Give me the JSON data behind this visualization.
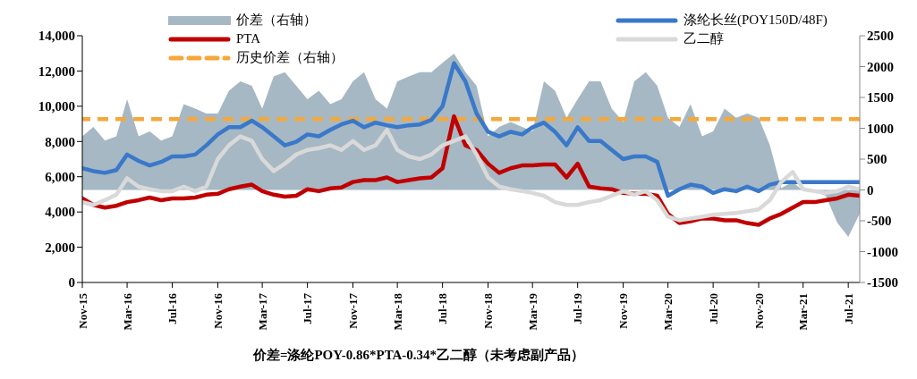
{
  "chart_data": {
    "type": "line",
    "x": [
      "2015-11",
      "2015-12",
      "2016-01",
      "2016-02",
      "2016-03",
      "2016-04",
      "2016-05",
      "2016-06",
      "2016-07",
      "2016-08",
      "2016-09",
      "2016-10",
      "2016-11",
      "2016-12",
      "2017-01",
      "2017-02",
      "2017-03",
      "2017-04",
      "2017-05",
      "2017-06",
      "2017-07",
      "2017-08",
      "2017-09",
      "2017-10",
      "2017-11",
      "2017-12",
      "2018-01",
      "2018-02",
      "2018-03",
      "2018-04",
      "2018-05",
      "2018-06",
      "2018-07",
      "2018-08",
      "2018-09",
      "2018-10",
      "2018-11",
      "2018-12",
      "2019-01",
      "2019-02",
      "2019-03",
      "2019-04",
      "2019-05",
      "2019-06",
      "2019-07",
      "2019-08",
      "2019-09",
      "2019-10",
      "2019-11",
      "2019-12",
      "2020-01",
      "2020-02",
      "2020-03",
      "2020-04",
      "2020-05",
      "2020-06",
      "2020-07",
      "2020-08",
      "2020-09",
      "2020-10",
      "2020-11",
      "2020-12",
      "2021-01",
      "2021-02",
      "2021-03",
      "2021-04",
      "2021-05",
      "2021-06",
      "2021-07",
      "2021-08"
    ],
    "series": [
      {
        "name": "价差（右轴）",
        "type": "area",
        "axis": "y2",
        "color": "#a5b8c4",
        "values": [
          870,
          1020,
          800,
          870,
          1470,
          870,
          950,
          800,
          870,
          1390,
          1320,
          1240,
          1240,
          1610,
          1760,
          1690,
          1320,
          1840,
          1910,
          1690,
          1470,
          1610,
          1390,
          1470,
          1760,
          1910,
          1470,
          1320,
          1760,
          1840,
          1910,
          1910,
          2060,
          2210,
          1910,
          1690,
          870,
          1020,
          1100,
          1020,
          950,
          1760,
          1610,
          1170,
          1470,
          1760,
          1760,
          1320,
          1100,
          1760,
          1910,
          1690,
          1170,
          1020,
          1390,
          870,
          950,
          1320,
          1170,
          1240,
          1170,
          730,
          30,
          130,
          -15,
          -40,
          -90,
          -530,
          -760,
          -385
        ]
      },
      {
        "name": "PTA",
        "color": "#c00000",
        "values": [
          4770,
          4400,
          4250,
          4350,
          4560,
          4670,
          4820,
          4670,
          4770,
          4770,
          4820,
          4980,
          5030,
          5290,
          5440,
          5550,
          5180,
          4980,
          4870,
          4920,
          5290,
          5180,
          5340,
          5390,
          5700,
          5810,
          5810,
          5960,
          5700,
          5810,
          5910,
          5960,
          6480,
          9430,
          7780,
          7520,
          6740,
          6220,
          6480,
          6640,
          6640,
          6690,
          6690,
          5960,
          6740,
          5440,
          5340,
          5290,
          5080,
          5030,
          5030,
          4920,
          3890,
          3370,
          3470,
          3630,
          3630,
          3530,
          3530,
          3370,
          3270,
          3630,
          3890,
          4250,
          4560,
          4560,
          4670,
          4770,
          4980,
          4920
        ]
      },
      {
        "name": "涤纶长丝(POY150D/48F)",
        "color": "#3a78c9",
        "values": [
          6480,
          6320,
          6220,
          6380,
          7260,
          6900,
          6640,
          6840,
          7150,
          7150,
          7260,
          7780,
          8400,
          8810,
          8810,
          9180,
          8810,
          8290,
          7780,
          7980,
          8400,
          8290,
          8660,
          8970,
          9180,
          8810,
          9070,
          8920,
          8810,
          8920,
          8970,
          9230,
          10000,
          12440,
          11400,
          9590,
          8550,
          8290,
          8550,
          8400,
          8810,
          9070,
          8550,
          7780,
          8810,
          8030,
          8030,
          7520,
          7000,
          7150,
          7150,
          6840,
          4920,
          5290,
          5550,
          5440,
          5080,
          5290,
          5180,
          5440,
          5180,
          5550,
          5700,
          5700,
          5700,
          5700,
          5700,
          5700,
          5700,
          5700
        ]
      },
      {
        "name": "乙二醇",
        "color": "#d9d9d9",
        "values": [
          4560,
          4400,
          4670,
          4980,
          5910,
          5440,
          5290,
          5180,
          5180,
          5440,
          5180,
          5440,
          7000,
          7780,
          8290,
          8030,
          7000,
          6320,
          6740,
          7260,
          7520,
          7620,
          7780,
          7520,
          8030,
          7520,
          7780,
          8660,
          7520,
          7150,
          7000,
          7260,
          7780,
          8030,
          8290,
          7260,
          5960,
          5440,
          5290,
          5180,
          5080,
          4920,
          4560,
          4400,
          4400,
          4560,
          4670,
          4920,
          5180,
          4980,
          5180,
          4670,
          3730,
          3530,
          3630,
          3730,
          3840,
          3890,
          3940,
          4040,
          4150,
          4670,
          5700,
          6270,
          5290,
          5180,
          5080,
          5180,
          5440,
          5290
        ]
      }
    ],
    "ref_lines": [
      {
        "axis": "y2",
        "value": 1150,
        "label": "历史价差（右轴）",
        "color": "#f5a83a",
        "line_style": "dashed"
      }
    ],
    "xlim": [
      "2015-11",
      "2021-08"
    ],
    "xticks": [
      {
        "value": "2015-11",
        "label": "Nov-15"
      },
      {
        "value": "2016-03",
        "label": "Mar-16"
      },
      {
        "value": "2016-07",
        "label": "Jul-16"
      },
      {
        "value": "2016-11",
        "label": "Nov-16"
      },
      {
        "value": "2017-03",
        "label": "Mar-17"
      },
      {
        "value": "2017-07",
        "label": "Jul-17"
      },
      {
        "value": "2017-11",
        "label": "Nov-17"
      },
      {
        "value": "2018-03",
        "label": "Mar-18"
      },
      {
        "value": "2018-07",
        "label": "Jul-18"
      },
      {
        "value": "2018-11",
        "label": "Nov-18"
      },
      {
        "value": "2019-03",
        "label": "Mar-19"
      },
      {
        "value": "2019-07",
        "label": "Jul-19"
      },
      {
        "value": "2019-11",
        "label": "Nov-19"
      },
      {
        "value": "2020-03",
        "label": "Mar-20"
      },
      {
        "value": "2020-07",
        "label": "Jul-20"
      },
      {
        "value": "2020-11",
        "label": "Nov-20"
      },
      {
        "value": "2021-03",
        "label": "Mar-21"
      },
      {
        "value": "2021-07",
        "label": "Jul-21"
      }
    ],
    "ylim": [
      0,
      14000
    ],
    "yticks": [
      0,
      {
        "value": 2000,
        "label": "2,000"
      },
      {
        "value": 4000,
        "label": "4,000"
      },
      {
        "value": 6000,
        "label": "6,000"
      },
      {
        "value": 8000,
        "label": "8,000"
      },
      {
        "value": 10000,
        "label": "10,000"
      },
      {
        "value": 12000,
        "label": "12,000"
      },
      {
        "value": 14000,
        "label": "14,000"
      }
    ],
    "y2lim": [
      -1500,
      2500
    ],
    "y2ticks": [
      -1500,
      -1000,
      -500,
      0,
      500,
      1000,
      1500,
      2000,
      2500
    ],
    "grid": false,
    "legend": "top",
    "marker": "none",
    "line_style": "solid",
    "annotations": [
      "价差=涤纶POY-0.86*PTA-0.34*乙二醇（未考虑副产品）"
    ]
  }
}
